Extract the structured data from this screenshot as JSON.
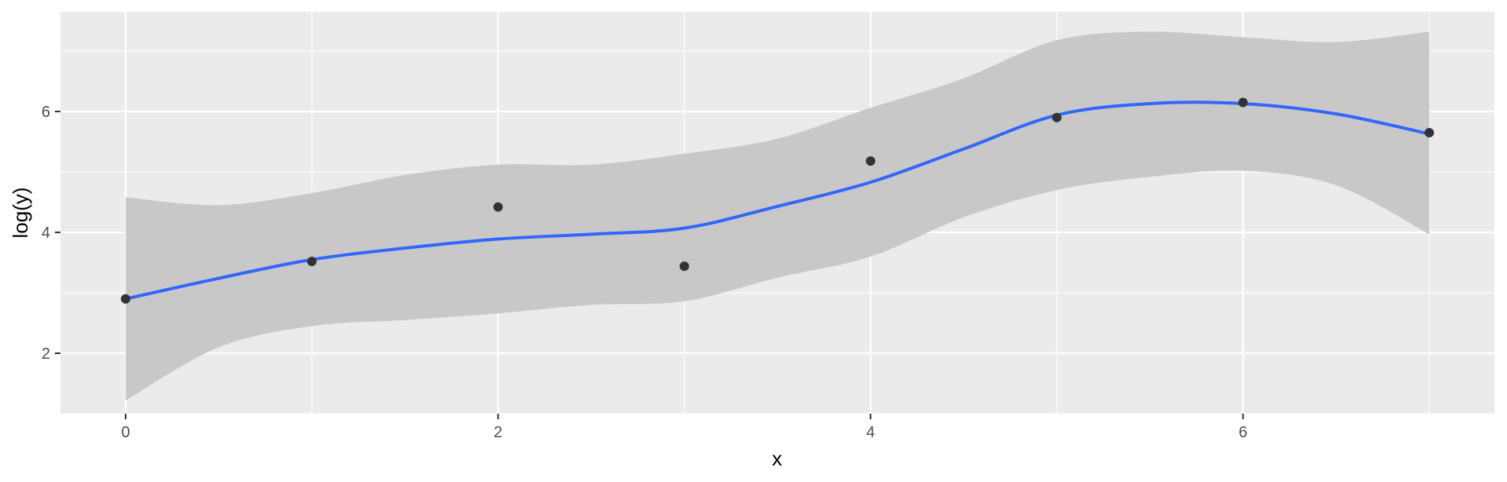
{
  "colors": {
    "panel_background": "#EBEBEB",
    "grid_major": "#FFFFFF",
    "ribbon": "#C8C8C8",
    "smooth_line": "#3366FF",
    "points": "#333333",
    "tick_text": "#4D4D4D"
  },
  "chart_data": {
    "type": "scatter",
    "title": "",
    "xlabel": "x",
    "ylabel": "log(y)",
    "xlim": [
      -0.35,
      7.35
    ],
    "ylim": [
      1.0,
      7.65
    ],
    "x_ticks": [
      0,
      2,
      4,
      6
    ],
    "x_tick_labels": [
      "0",
      "2",
      "4",
      "6"
    ],
    "y_ticks": [
      2,
      4,
      6
    ],
    "y_tick_labels": [
      "2",
      "4",
      "6"
    ],
    "grid": true,
    "legend": "none",
    "points": [
      {
        "x": 0,
        "y": 2.9
      },
      {
        "x": 1,
        "y": 3.52
      },
      {
        "x": 2,
        "y": 4.42
      },
      {
        "x": 3,
        "y": 3.44
      },
      {
        "x": 4,
        "y": 5.18
      },
      {
        "x": 5,
        "y": 5.9
      },
      {
        "x": 6,
        "y": 6.15
      },
      {
        "x": 7,
        "y": 5.65
      }
    ],
    "smooth": {
      "method": "loess",
      "x": [
        0,
        0.5,
        1,
        1.5,
        2,
        2.5,
        3,
        3.5,
        4,
        4.5,
        5,
        5.5,
        6,
        6.5,
        7
      ],
      "y": [
        2.9,
        3.24,
        3.55,
        3.74,
        3.89,
        3.97,
        4.07,
        4.43,
        4.83,
        5.38,
        5.94,
        6.13,
        6.13,
        5.96,
        5.63
      ],
      "lower": [
        1.22,
        2.1,
        2.45,
        2.55,
        2.66,
        2.8,
        2.86,
        3.25,
        3.6,
        4.25,
        4.7,
        4.92,
        5.02,
        4.78,
        3.97
      ],
      "upper": [
        4.58,
        4.45,
        4.65,
        4.95,
        5.12,
        5.12,
        5.3,
        5.55,
        6.06,
        6.55,
        7.18,
        7.32,
        7.23,
        7.15,
        7.32
      ]
    }
  }
}
